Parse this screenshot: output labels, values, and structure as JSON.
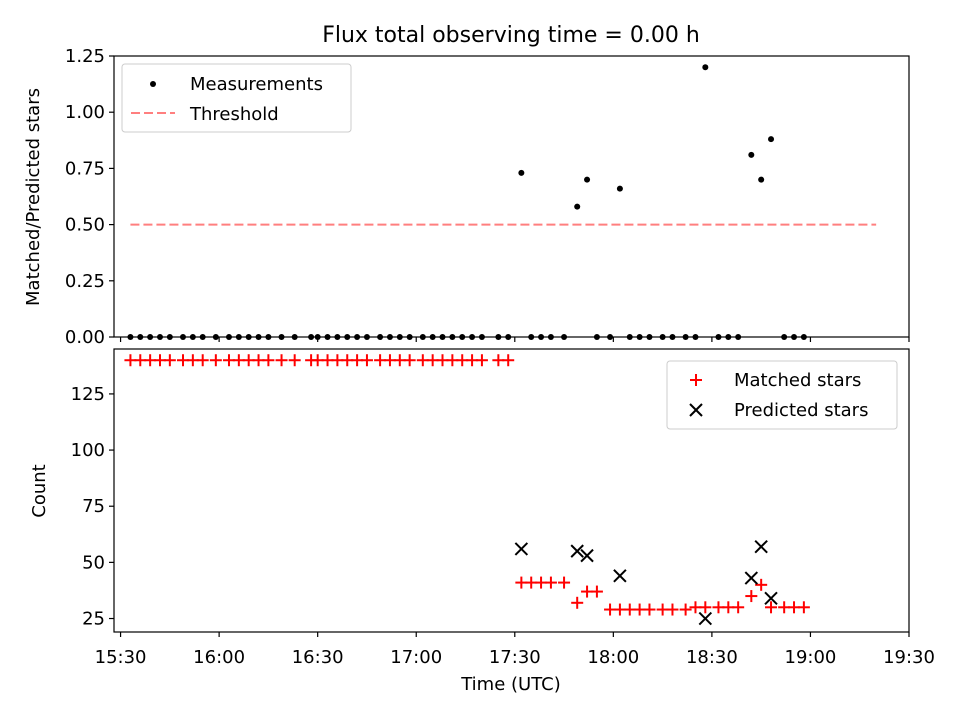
{
  "chart_data": [
    {
      "type": "scatter",
      "title": "Flux total observing time = 0.00 h",
      "xlabel": "",
      "ylabel": "Matched/Predicted stars",
      "ylim": [
        0.0,
        1.25
      ],
      "yticks": [
        "0.00",
        "0.25",
        "0.50",
        "0.75",
        "1.00",
        "1.25"
      ],
      "ytick_values": [
        0,
        0.25,
        0.5,
        0.75,
        1.0,
        1.25
      ],
      "legend_position": "upper-left",
      "series": [
        {
          "name": "Measurements",
          "marker": "dot",
          "color": "#000000",
          "points": [
            [
              "15:33",
              0
            ],
            [
              "15:36",
              0
            ],
            [
              "15:39",
              0
            ],
            [
              "15:42",
              0
            ],
            [
              "15:45",
              0
            ],
            [
              "15:49",
              0
            ],
            [
              "15:52",
              0
            ],
            [
              "15:55",
              0
            ],
            [
              "15:59",
              0
            ],
            [
              "16:03",
              0
            ],
            [
              "16:06",
              0
            ],
            [
              "16:09",
              0
            ],
            [
              "16:12",
              0
            ],
            [
              "16:15",
              0
            ],
            [
              "16:19",
              0
            ],
            [
              "16:23",
              0
            ],
            [
              "16:28",
              0
            ],
            [
              "16:30",
              0
            ],
            [
              "16:33",
              0
            ],
            [
              "16:36",
              0
            ],
            [
              "16:39",
              0
            ],
            [
              "16:42",
              0
            ],
            [
              "16:45",
              0
            ],
            [
              "16:49",
              0
            ],
            [
              "16:52",
              0
            ],
            [
              "16:55",
              0
            ],
            [
              "16:58",
              0
            ],
            [
              "17:02",
              0
            ],
            [
              "17:05",
              0
            ],
            [
              "17:08",
              0
            ],
            [
              "17:11",
              0
            ],
            [
              "17:14",
              0
            ],
            [
              "17:17",
              0
            ],
            [
              "17:20",
              0
            ],
            [
              "17:25",
              0
            ],
            [
              "17:28",
              0
            ],
            [
              "17:32",
              0.73
            ],
            [
              "17:35",
              0
            ],
            [
              "17:38",
              0
            ],
            [
              "17:41",
              0
            ],
            [
              "17:45",
              0
            ],
            [
              "17:49",
              0.58
            ],
            [
              "17:52",
              0.7
            ],
            [
              "17:55",
              0
            ],
            [
              "17:59",
              0
            ],
            [
              "18:02",
              0.66
            ],
            [
              "18:05",
              0
            ],
            [
              "18:08",
              0
            ],
            [
              "18:11",
              0
            ],
            [
              "18:15",
              0
            ],
            [
              "18:18",
              0
            ],
            [
              "18:22",
              0
            ],
            [
              "18:25",
              0
            ],
            [
              "18:28",
              1.2
            ],
            [
              "18:32",
              0
            ],
            [
              "18:35",
              0
            ],
            [
              "18:38",
              0
            ],
            [
              "18:42",
              0.81
            ],
            [
              "18:45",
              0.7
            ],
            [
              "18:48",
              0.88
            ],
            [
              "18:52",
              0
            ],
            [
              "18:55",
              0
            ],
            [
              "18:58",
              0
            ]
          ]
        },
        {
          "name": "Threshold",
          "style": "dashed",
          "color": "#ff7f7f",
          "points": [
            [
              "15:33",
              0.5
            ],
            [
              "19:20",
              0.5
            ]
          ]
        }
      ]
    },
    {
      "type": "scatter",
      "title": "",
      "xlabel": "Time (UTC)",
      "ylabel": "Count",
      "ylim": [
        19,
        145
      ],
      "yticks": [
        "25",
        "50",
        "75",
        "100",
        "125"
      ],
      "ytick_values": [
        25,
        50,
        75,
        100,
        125
      ],
      "xticks": [
        "15:30",
        "16:00",
        "16:30",
        "17:00",
        "17:30",
        "18:00",
        "18:30",
        "19:00",
        "19:30"
      ],
      "xlim": [
        "15:28",
        "19:30"
      ],
      "legend_position": "upper-right",
      "series": [
        {
          "name": "Matched stars",
          "marker": "plus",
          "color": "#ff0000",
          "points": [
            [
              "15:33",
              140
            ],
            [
              "15:36",
              140
            ],
            [
              "15:39",
              140
            ],
            [
              "15:42",
              140
            ],
            [
              "15:45",
              140
            ],
            [
              "15:49",
              140
            ],
            [
              "15:52",
              140
            ],
            [
              "15:55",
              140
            ],
            [
              "15:59",
              140
            ],
            [
              "16:03",
              140
            ],
            [
              "16:06",
              140
            ],
            [
              "16:09",
              140
            ],
            [
              "16:12",
              140
            ],
            [
              "16:15",
              140
            ],
            [
              "16:19",
              140
            ],
            [
              "16:23",
              140
            ],
            [
              "16:28",
              140
            ],
            [
              "16:30",
              140
            ],
            [
              "16:33",
              140
            ],
            [
              "16:36",
              140
            ],
            [
              "16:39",
              140
            ],
            [
              "16:42",
              140
            ],
            [
              "16:45",
              140
            ],
            [
              "16:49",
              140
            ],
            [
              "16:52",
              140
            ],
            [
              "16:55",
              140
            ],
            [
              "16:58",
              140
            ],
            [
              "17:02",
              140
            ],
            [
              "17:05",
              140
            ],
            [
              "17:08",
              140
            ],
            [
              "17:11",
              140
            ],
            [
              "17:14",
              140
            ],
            [
              "17:17",
              140
            ],
            [
              "17:20",
              140
            ],
            [
              "17:25",
              140
            ],
            [
              "17:28",
              140
            ],
            [
              "17:32",
              41
            ],
            [
              "17:35",
              41
            ],
            [
              "17:38",
              41
            ],
            [
              "17:41",
              41
            ],
            [
              "17:45",
              41
            ],
            [
              "17:49",
              32
            ],
            [
              "17:52",
              37
            ],
            [
              "17:55",
              37
            ],
            [
              "17:59",
              29
            ],
            [
              "18:02",
              29
            ],
            [
              "18:05",
              29
            ],
            [
              "18:08",
              29
            ],
            [
              "18:11",
              29
            ],
            [
              "18:15",
              29
            ],
            [
              "18:18",
              29
            ],
            [
              "18:22",
              29
            ],
            [
              "18:25",
              30
            ],
            [
              "18:28",
              30
            ],
            [
              "18:32",
              30
            ],
            [
              "18:35",
              30
            ],
            [
              "18:38",
              30
            ],
            [
              "18:42",
              35
            ],
            [
              "18:45",
              40
            ],
            [
              "18:48",
              30
            ],
            [
              "18:52",
              30
            ],
            [
              "18:55",
              30
            ],
            [
              "18:58",
              30
            ]
          ]
        },
        {
          "name": "Predicted stars",
          "marker": "x",
          "color": "#000000",
          "points": [
            [
              "17:32",
              56
            ],
            [
              "17:49",
              55
            ],
            [
              "17:52",
              53
            ],
            [
              "18:02",
              44
            ],
            [
              "18:28",
              25
            ],
            [
              "18:42",
              43
            ],
            [
              "18:45",
              57
            ],
            [
              "18:48",
              34
            ]
          ]
        }
      ]
    }
  ]
}
